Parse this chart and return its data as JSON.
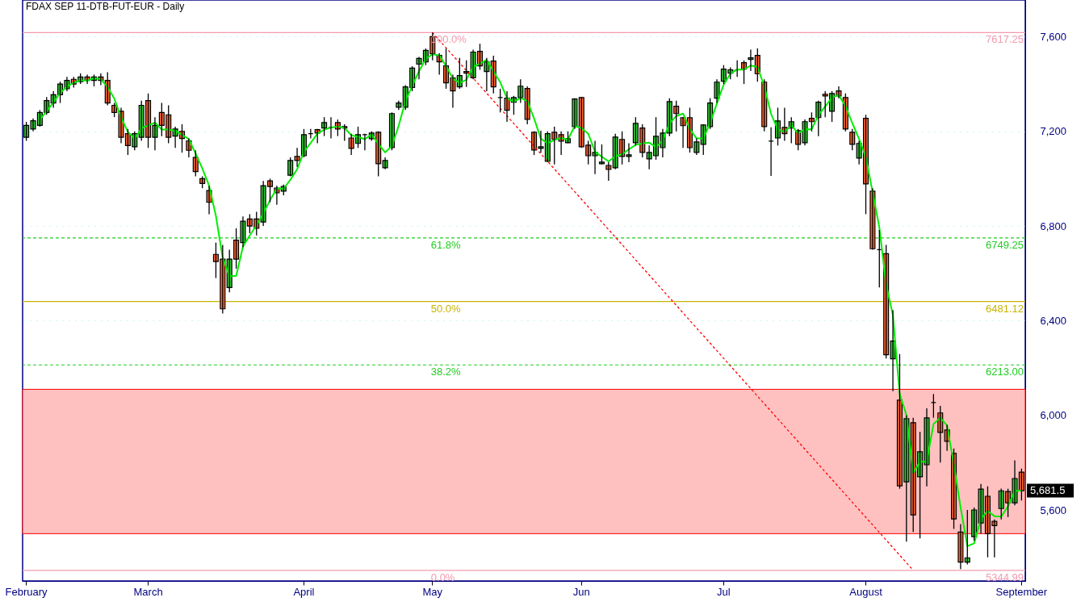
{
  "chart_data": {
    "type": "candlestick",
    "title": "FDAX SEP 11-DTB-FUT-EUR - Daily",
    "categories": [
      "February",
      null,
      null,
      null,
      null,
      null,
      null,
      null,
      null,
      null,
      null,
      null,
      null,
      null,
      null,
      null,
      null,
      null,
      "March",
      null,
      null,
      null,
      null,
      null,
      null,
      null,
      null,
      null,
      null,
      null,
      null,
      null,
      null,
      null,
      null,
      null,
      null,
      null,
      null,
      null,
      null,
      "April",
      null,
      null,
      null,
      null,
      null,
      null,
      null,
      null,
      null,
      null,
      null,
      null,
      null,
      null,
      null,
      null,
      null,
      null,
      "May",
      null,
      null,
      null,
      null,
      null,
      null,
      null,
      null,
      null,
      null,
      null,
      null,
      null,
      null,
      null,
      null,
      null,
      null,
      null,
      null,
      null,
      "Jun",
      null,
      null,
      null,
      null,
      null,
      null,
      null,
      null,
      null,
      null,
      null,
      null,
      null,
      null,
      null,
      null,
      null,
      null,
      null,
      null,
      "Jul",
      null,
      null,
      null,
      null,
      null,
      null,
      null,
      null,
      null,
      null,
      null,
      null,
      null,
      null,
      null,
      null,
      null,
      null,
      null,
      null,
      "August",
      null,
      null,
      null,
      null,
      null,
      null,
      null,
      null,
      null,
      null,
      null,
      null,
      null,
      null,
      null,
      null,
      null,
      null,
      null,
      null,
      null,
      null,
      "September"
    ],
    "ohlc": [
      [
        7175,
        7240,
        7160,
        7225
      ],
      [
        7210,
        7255,
        7200,
        7245
      ],
      [
        7225,
        7290,
        7220,
        7280
      ],
      [
        7280,
        7345,
        7270,
        7330
      ],
      [
        7320,
        7370,
        7300,
        7355
      ],
      [
        7355,
        7410,
        7320,
        7400
      ],
      [
        7380,
        7430,
        7370,
        7415
      ],
      [
        7420,
        7430,
        7385,
        7400
      ],
      [
        7410,
        7445,
        7400,
        7430
      ],
      [
        7430,
        7440,
        7400,
        7415
      ],
      [
        7415,
        7440,
        7390,
        7430
      ],
      [
        7430,
        7445,
        7395,
        7415
      ],
      [
        7415,
        7450,
        7310,
        7320
      ],
      [
        7310,
        7320,
        7260,
        7280
      ],
      [
        7285,
        7300,
        7150,
        7175
      ],
      [
        7190,
        7210,
        7100,
        7140
      ],
      [
        7135,
        7200,
        7120,
        7190
      ],
      [
        7175,
        7330,
        7160,
        7310
      ],
      [
        7330,
        7360,
        7130,
        7175
      ],
      [
        7175,
        7260,
        7120,
        7225
      ],
      [
        7280,
        7320,
        7180,
        7225
      ],
      [
        7270,
        7310,
        7150,
        7175
      ],
      [
        7180,
        7220,
        7130,
        7210
      ],
      [
        7200,
        7230,
        7110,
        7170
      ],
      [
        7160,
        7170,
        7090,
        7120
      ],
      [
        7090,
        7120,
        7010,
        7030
      ],
      [
        7000,
        7010,
        6960,
        6980
      ],
      [
        6950,
        6970,
        6850,
        6900
      ],
      [
        6680,
        6730,
        6580,
        6650
      ],
      [
        6660,
        6720,
        6430,
        6450
      ],
      [
        6540,
        6700,
        6520,
        6660
      ],
      [
        6740,
        6790,
        6620,
        6660
      ],
      [
        6730,
        6840,
        6710,
        6820
      ],
      [
        6830,
        6850,
        6770,
        6800
      ],
      [
        6830,
        6860,
        6760,
        6790
      ],
      [
        6817,
        6990,
        6800,
        6970
      ],
      [
        6991,
        7000,
        6900,
        6967
      ],
      [
        6960,
        6970,
        6890,
        6940
      ],
      [
        6947,
        6975,
        6930,
        6967
      ],
      [
        7015,
        7090,
        7010,
        7077
      ],
      [
        7094,
        7130,
        7050,
        7077
      ],
      [
        7097,
        7210,
        7090,
        7186
      ],
      [
        7190,
        7210,
        7170,
        7190
      ],
      [
        7207,
        7210,
        7150,
        7193
      ],
      [
        7214,
        7260,
        7180,
        7237
      ],
      [
        7217,
        7260,
        7170,
        7217
      ],
      [
        7237,
        7250,
        7180,
        7210
      ],
      [
        7220,
        7230,
        7160,
        7214
      ],
      [
        7172,
        7190,
        7100,
        7128
      ],
      [
        7149,
        7220,
        7130,
        7186
      ],
      [
        7186,
        7190,
        7120,
        7186
      ],
      [
        7169,
        7200,
        7160,
        7193
      ],
      [
        7196,
        7200,
        7010,
        7063
      ],
      [
        7046,
        7090,
        7040,
        7077
      ],
      [
        7131,
        7280,
        7120,
        7275
      ],
      [
        7302,
        7330,
        7290,
        7320
      ],
      [
        7302,
        7395,
        7290,
        7388
      ],
      [
        7385,
        7475,
        7370,
        7467
      ],
      [
        7484,
        7515,
        7420,
        7508
      ],
      [
        7494,
        7550,
        7480,
        7542
      ],
      [
        7600,
        7617,
        7500,
        7528
      ],
      [
        7521,
        7530,
        7440,
        7494
      ],
      [
        7477,
        7550,
        7380,
        7405
      ],
      [
        7426,
        7440,
        7300,
        7371
      ],
      [
        7388,
        7510,
        7380,
        7436
      ],
      [
        7453,
        7500,
        7388,
        7446
      ],
      [
        7426,
        7545,
        7420,
        7535
      ],
      [
        7538,
        7570,
        7460,
        7477
      ],
      [
        7453,
        7510,
        7370,
        7494
      ],
      [
        7497,
        7520,
        7360,
        7388
      ],
      [
        7343,
        7380,
        7280,
        7343
      ],
      [
        7340,
        7370,
        7240,
        7289
      ],
      [
        7323,
        7350,
        7270,
        7343
      ],
      [
        7343,
        7420,
        7320,
        7391
      ],
      [
        7381,
        7390,
        7230,
        7251
      ],
      [
        7196,
        7200,
        7100,
        7121
      ],
      [
        7128,
        7203,
        7110,
        7135
      ],
      [
        7073,
        7200,
        7070,
        7190
      ],
      [
        7196,
        7220,
        7060,
        7166
      ],
      [
        7186,
        7200,
        7100,
        7159
      ],
      [
        7152,
        7200,
        7150,
        7169
      ],
      [
        7220,
        7340,
        7210,
        7337
      ],
      [
        7343,
        7345,
        7130,
        7135
      ],
      [
        7142,
        7160,
        7060,
        7097
      ],
      [
        7097,
        7160,
        7019,
        7111
      ],
      [
        7063,
        7145,
        7060,
        7070
      ],
      [
        7056,
        7070,
        6991,
        7039
      ],
      [
        7046,
        7190,
        7040,
        7176
      ],
      [
        7166,
        7200,
        7060,
        7094
      ],
      [
        7094,
        7150,
        7070,
        7101
      ],
      [
        7152,
        7260,
        7140,
        7234
      ],
      [
        7214,
        7230,
        7090,
        7111
      ],
      [
        7084,
        7140,
        7040,
        7111
      ],
      [
        7097,
        7260,
        7080,
        7179
      ],
      [
        7131,
        7210,
        7090,
        7193
      ],
      [
        7193,
        7340,
        7180,
        7326
      ],
      [
        7306,
        7330,
        7200,
        7275
      ],
      [
        7258,
        7260,
        7130,
        7224
      ],
      [
        7258,
        7300,
        7110,
        7131
      ],
      [
        7111,
        7170,
        7100,
        7155
      ],
      [
        7145,
        7230,
        7100,
        7227
      ],
      [
        7220,
        7340,
        7210,
        7320
      ],
      [
        7340,
        7420,
        7320,
        7408
      ],
      [
        7412,
        7480,
        7400,
        7463
      ],
      [
        7446,
        7470,
        7420,
        7460
      ],
      [
        7460,
        7500,
        7430,
        7460
      ],
      [
        7490,
        7500,
        7400,
        7463
      ],
      [
        7504,
        7545,
        7455,
        7511
      ],
      [
        7521,
        7550,
        7410,
        7443
      ],
      [
        7408,
        7420,
        7200,
        7220
      ],
      [
        7159,
        7217,
        7012,
        7159
      ],
      [
        7172,
        7300,
        7140,
        7244
      ],
      [
        7217,
        7300,
        7160,
        7190
      ],
      [
        7214,
        7260,
        7150,
        7241
      ],
      [
        7203,
        7210,
        7120,
        7145
      ],
      [
        7152,
        7250,
        7140,
        7241
      ],
      [
        7255,
        7280,
        7200,
        7241
      ],
      [
        7258,
        7330,
        7180,
        7323
      ],
      [
        7357,
        7370,
        7260,
        7350
      ],
      [
        7285,
        7370,
        7240,
        7360
      ],
      [
        7371,
        7390,
        7340,
        7350
      ],
      [
        7343,
        7360,
        7200,
        7210
      ],
      [
        7196,
        7210,
        7120,
        7145
      ],
      [
        7087,
        7160,
        7060,
        7149
      ],
      [
        7255,
        7270,
        6850,
        6978
      ],
      [
        6947,
        6960,
        6700,
        6704
      ],
      [
        6700,
        6783,
        6540,
        6700
      ],
      [
        6683,
        6720,
        6240,
        6256
      ],
      [
        6239,
        6445,
        6102,
        6314
      ],
      [
        6064,
        6259,
        5690,
        5702
      ],
      [
        5719,
        6000,
        5466,
        5986
      ],
      [
        5969,
        5990,
        5507,
        5579
      ],
      [
        5740,
        5930,
        5480,
        5846
      ],
      [
        5791,
        6030,
        5700,
        5989
      ],
      [
        6054,
        6090,
        5990,
        6054
      ],
      [
        6010,
        6040,
        5800,
        5928
      ],
      [
        5938,
        5960,
        5850,
        5890
      ],
      [
        5839,
        5860,
        5520,
        5562
      ],
      [
        5507,
        5540,
        5350,
        5380
      ],
      [
        5380,
        5600,
        5370,
        5398
      ],
      [
        5487,
        5610,
        5470,
        5600
      ],
      [
        5545,
        5710,
        5500,
        5688
      ],
      [
        5658,
        5700,
        5400,
        5500
      ],
      [
        5552,
        5560,
        5400,
        5534
      ],
      [
        5606,
        5690,
        5560,
        5681
      ],
      [
        5678,
        5690,
        5570,
        5630
      ],
      [
        5630,
        5810,
        5620,
        5733
      ],
      [
        5760,
        5775,
        5640,
        5681.5
      ]
    ],
    "colors": [
      "#33cc33",
      "#33cc33",
      "#33cc33",
      "#33cc33",
      "#33cc33",
      "#33cc33",
      "#33cc33",
      "#ff6633",
      "#33cc33",
      "#ff6633",
      "#33cc33",
      "#ff6633",
      "#ff6633",
      "#ff6633",
      "#ff6633",
      "#ff6633",
      "#33cc33",
      "#33cc33",
      "#ff6633",
      "#33cc33",
      "#ff6633",
      "#ff6633",
      "#33cc33",
      "#ff6633",
      "#ff6633",
      "#ff6633",
      "#ff6633",
      "#ff6633",
      "#ff6633",
      "#ff6633",
      "#33cc33",
      "#ff6633",
      "#33cc33",
      "#ff6633",
      "#ff6633",
      "#33cc33",
      "#ff6633",
      "#ff6633",
      "#33cc33",
      "#33cc33",
      "#ff6633",
      "#33cc33",
      "#000000",
      "#ff6633",
      "#33cc33",
      "#000000",
      "#ff6633",
      "#ff6633",
      "#ff6633",
      "#33cc33",
      "#000000",
      "#33cc33",
      "#ff6633",
      "#33cc33",
      "#33cc33",
      "#33cc33",
      "#33cc33",
      "#33cc33",
      "#33cc33",
      "#33cc33",
      "#ff6633",
      "#ff6633",
      "#ff6633",
      "#ff6633",
      "#33cc33",
      "#ff6633",
      "#33cc33",
      "#ff6633",
      "#33cc33",
      "#ff6633",
      "#000000",
      "#ff6633",
      "#33cc33",
      "#33cc33",
      "#ff6633",
      "#ff6633",
      "#33cc33",
      "#33cc33",
      "#ff6633",
      "#ff6633",
      "#33cc33",
      "#33cc33",
      "#ff6633",
      "#ff6633",
      "#33cc33",
      "#33cc33",
      "#ff6633",
      "#33cc33",
      "#ff6633",
      "#33cc33",
      "#33cc33",
      "#ff6633",
      "#33cc33",
      "#33cc33",
      "#33cc33",
      "#33cc33",
      "#ff6633",
      "#ff6633",
      "#ff6633",
      "#33cc33",
      "#33cc33",
      "#33cc33",
      "#33cc33",
      "#33cc33",
      "#33cc33",
      "#000000",
      "#ff6633",
      "#33cc33",
      "#ff6633",
      "#ff6633",
      "#000000",
      "#33cc33",
      "#ff6633",
      "#33cc33",
      "#ff6633",
      "#33cc33",
      "#ff6633",
      "#33cc33",
      "#ff6633",
      "#33cc33",
      "#ff6633",
      "#ff6633",
      "#ff6633",
      "#33cc33",
      "#ff6633",
      "#ff6633",
      "#000000",
      "#ff6633",
      "#33cc33",
      "#ff6633",
      "#33cc33",
      "#ff6633",
      "#33cc33",
      "#33cc33",
      "#000000",
      "#ff6633",
      "#ff6633",
      "#ff6633",
      "#ff6633",
      "#33cc33",
      "#33cc33",
      "#33cc33",
      "#ff6633",
      "#ff6633",
      "#33cc33",
      "#ff6633",
      "#33cc33",
      "#ff6633"
    ],
    "series": [
      {
        "type": "line",
        "color": "#00ee00",
        "values": [
          null,
          null,
          7250,
          7285,
          7322,
          7362,
          7390,
          7405,
          7415,
          7415,
          7425,
          7420,
          7388,
          7338,
          7258,
          7198,
          7168,
          7213,
          7225,
          7237,
          7208,
          7208,
          7203,
          7185,
          7167,
          7107,
          7043,
          6970,
          6843,
          6667,
          6587,
          6590,
          6713,
          6760,
          6803,
          6853,
          6909,
          6959,
          6958,
          6995,
          7040,
          7113,
          7151,
          7190,
          7207,
          7216,
          7221,
          7214,
          7184,
          7176,
          7167,
          7188,
          7147,
          7111,
          7138,
          7224,
          7328,
          7392,
          7454,
          7506,
          7526,
          7521,
          7476,
          7423,
          7404,
          7418,
          7472,
          7486,
          7502,
          7453,
          7408,
          7340,
          7325,
          7341,
          7328,
          7254,
          7169,
          7149,
          7164,
          7172,
          7165,
          7222,
          7214,
          7190,
          7114,
          7093,
          7073,
          7095,
          7103,
          7124,
          7143,
          7149,
          7152,
          7134,
          7161,
          7233,
          7265,
          7275,
          7210,
          7170,
          7171,
          7234,
          7318,
          7397,
          7444,
          7461,
          7461,
          7478,
          7472,
          7391,
          7274,
          7208,
          7198,
          7225,
          7192,
          7209,
          7209,
          7268,
          7305,
          7344,
          7353,
          7307,
          7235,
          7168,
          7091,
          6944,
          6794,
          6553,
          6423,
          6091,
          6001,
          5756,
          5804,
          5805,
          5963,
          5990,
          5957,
          5793,
          5611,
          5447,
          5459,
          5562,
          5596,
          5574,
          5572,
          5615,
          5681,
          5682
        ]
      },
      {
        "type": "line",
        "color": "#ff0000",
        "line_style": "dotted",
        "values": [
          null,
          null,
          null,
          null,
          null,
          null,
          null,
          null,
          null,
          null,
          null,
          null,
          null,
          null,
          null,
          null,
          null,
          null,
          null,
          null,
          null,
          null,
          null,
          null,
          null,
          null,
          null,
          null,
          null,
          null,
          null,
          null,
          null,
          null,
          null,
          null,
          null,
          null,
          null,
          null,
          null,
          null,
          null,
          null,
          null,
          null,
          null,
          null,
          null,
          null,
          null,
          null,
          null,
          null,
          null,
          null,
          null,
          null,
          null,
          null,
          7617,
          null,
          null,
          null,
          null,
          null,
          null,
          null,
          null,
          null,
          null,
          null,
          null,
          null,
          null,
          null,
          null,
          null,
          null,
          null,
          null,
          null,
          null,
          null,
          null,
          null,
          null,
          null,
          null,
          null,
          null,
          null,
          null,
          null,
          null,
          null,
          null,
          null,
          null,
          null,
          null,
          null,
          null,
          null,
          null,
          null,
          null,
          null,
          null,
          null,
          null,
          null,
          null,
          null,
          null,
          null,
          null,
          null,
          null,
          null,
          null,
          null,
          null,
          null,
          null,
          null,
          null,
          null,
          null,
          null,
          null,
          5345,
          null,
          null,
          null,
          null,
          null,
          null,
          null,
          null,
          null,
          null,
          null,
          null,
          null,
          null,
          null,
          null
        ]
      }
    ],
    "ylim": [
      5300,
      7755
    ],
    "yticks": [
      {
        "value": 5600,
        "label": "5,600"
      },
      {
        "value": 6000,
        "label": "6,000"
      },
      {
        "value": 6400,
        "label": "6,400"
      },
      {
        "value": 6800,
        "label": "6,800"
      },
      {
        "value": 7200,
        "label": "7,200"
      },
      {
        "value": 7600,
        "label": "7,600"
      }
    ],
    "grid": "y",
    "ref_lines": [
      {
        "axis": "y",
        "value": 7617.25,
        "label": "7617.25",
        "color": "#f29aae",
        "line_style": "solid"
      },
      {
        "axis": "y",
        "value": 6749.25,
        "label": "6749.25",
        "color": "#22cc22",
        "line_style": "dashed"
      },
      {
        "axis": "y",
        "value": 6481.12,
        "label": "6481.12",
        "color": "#c8b400",
        "line_style": "solid"
      },
      {
        "axis": "y",
        "value": 6213.0,
        "label": "6213.00",
        "color": "#22cc22",
        "line_style": "dashed"
      },
      {
        "axis": "y",
        "value": 5344.99,
        "label": "5344.99",
        "color": "#f29aae",
        "line_style": "solid"
      }
    ],
    "bands": [
      {
        "axis": "y",
        "from": 5500,
        "to": 6110,
        "color": "#ffc0c0"
      }
    ],
    "annotations": [
      {
        "text": "100.0%",
        "x": "May",
        "y": 7617.25
      },
      {
        "text": "61.8%",
        "x": "May",
        "y": 6749.25
      },
      {
        "text": "50.0%",
        "x": "May",
        "y": 6481.12
      },
      {
        "text": "38.2%",
        "x": "May",
        "y": 6213.0
      },
      {
        "text": "0.0%",
        "x": "May",
        "y": 5344.99
      },
      "5,681.5"
    ]
  }
}
